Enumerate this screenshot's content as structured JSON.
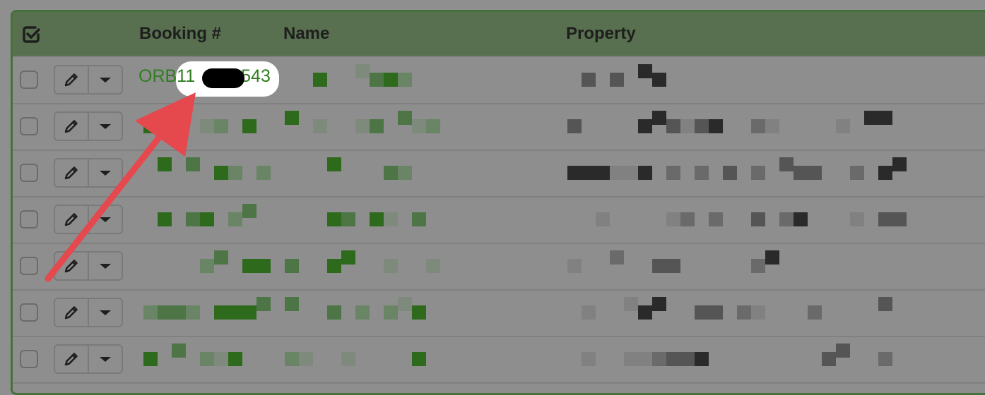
{
  "table": {
    "columns": [
      "Booking #",
      "Name",
      "Property"
    ],
    "rows": [
      {
        "booking": "ORB11",
        "booking_suffix": "543",
        "redacted": false
      },
      {
        "redacted": true
      },
      {
        "redacted": true
      },
      {
        "redacted": true
      },
      {
        "redacted": true
      },
      {
        "redacted": true
      },
      {
        "redacted": true
      }
    ]
  },
  "icons": {
    "header": "check-square-icon",
    "edit": "pencil-icon",
    "menu": "caret-down-icon"
  },
  "colors": {
    "header_bg": "#58704f",
    "link_green": "#2f7d1f",
    "arrow": "#e5484d"
  }
}
